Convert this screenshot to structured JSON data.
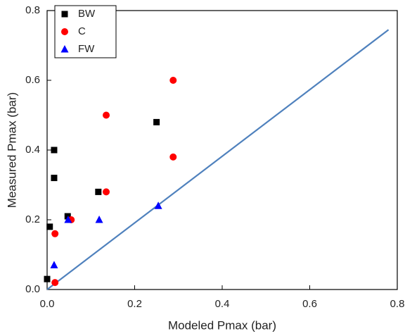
{
  "chart_data": {
    "type": "scatter",
    "x_label": "Modeled Pmax (bar)",
    "y_label": "Measured Pmax (bar)",
    "xlim": [
      0,
      0.8
    ],
    "ylim": [
      0,
      0.8
    ],
    "xticks": [
      {
        "value": 0,
        "label": "0.0"
      },
      0.2,
      0.4,
      0.6,
      0.8
    ],
    "yticks": [
      {
        "value": 0,
        "label": "0.0"
      },
      0.2,
      0.4,
      0.6,
      0.8
    ],
    "legend": "upper left",
    "series": [
      {
        "name": "BW",
        "color": "#000000",
        "marker": "square",
        "x": [
          0.0,
          0.006,
          0.016,
          0.016,
          0.047,
          0.117,
          0.25
        ],
        "values": [
          0.03,
          0.18,
          0.4,
          0.32,
          0.21,
          0.28,
          0.48
        ]
      },
      {
        "name": "C",
        "color": "#ff0000",
        "marker": "circle",
        "x": [
          0.018,
          0.018,
          0.055,
          0.135,
          0.135,
          0.288,
          0.288
        ],
        "values": [
          0.16,
          0.02,
          0.2,
          0.28,
          0.5,
          0.38,
          0.6
        ]
      },
      {
        "name": "FW",
        "color": "#0000ff",
        "marker": "triangle",
        "x": [
          0.016,
          0.048,
          0.119,
          0.254
        ],
        "values": [
          0.07,
          0.2,
          0.2,
          0.24
        ]
      }
    ],
    "reference_line": {
      "color": "#4f81bd",
      "x": [
        0,
        0.78
      ],
      "values": [
        0,
        0.745
      ]
    }
  }
}
